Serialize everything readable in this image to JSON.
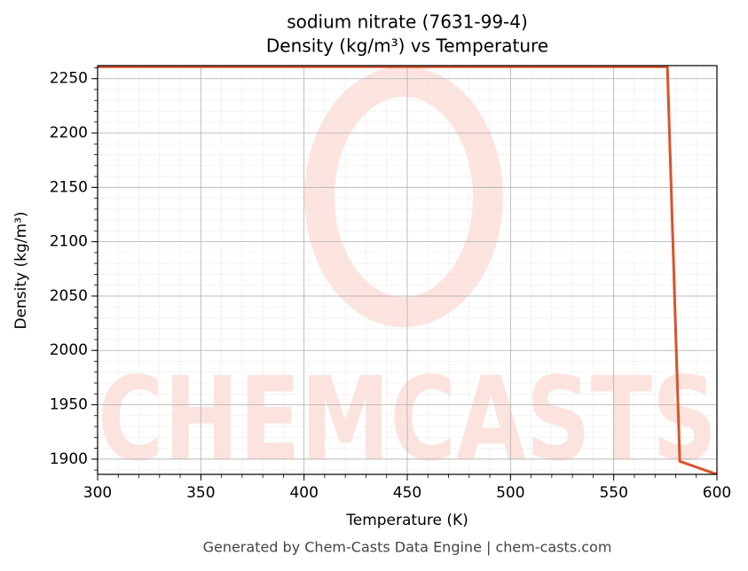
{
  "chart_data": {
    "type": "line",
    "title": "sodium nitrate (7631-99-4)",
    "subtitle": "Density (kg/m³) vs Temperature",
    "x_label": "Temperature (K)",
    "y_label": "Density (kg/m³)",
    "x": [
      300,
      576,
      582,
      600
    ],
    "series": [
      {
        "name": "Density",
        "color": "#d9532b",
        "values": [
          2261,
          2261,
          1898,
          1886
        ]
      }
    ],
    "xlim": [
      300,
      600
    ],
    "xticks": [
      300,
      350,
      400,
      450,
      500,
      550,
      600
    ],
    "ylim": [
      1886,
      2262
    ],
    "yticks": [
      1900,
      1950,
      2000,
      2050,
      2100,
      2150,
      2200,
      2250
    ],
    "grid": true,
    "watermark": "CHEMCASTS",
    "footer": "Generated by Chem-Casts Data Engine | chem-casts.com"
  }
}
